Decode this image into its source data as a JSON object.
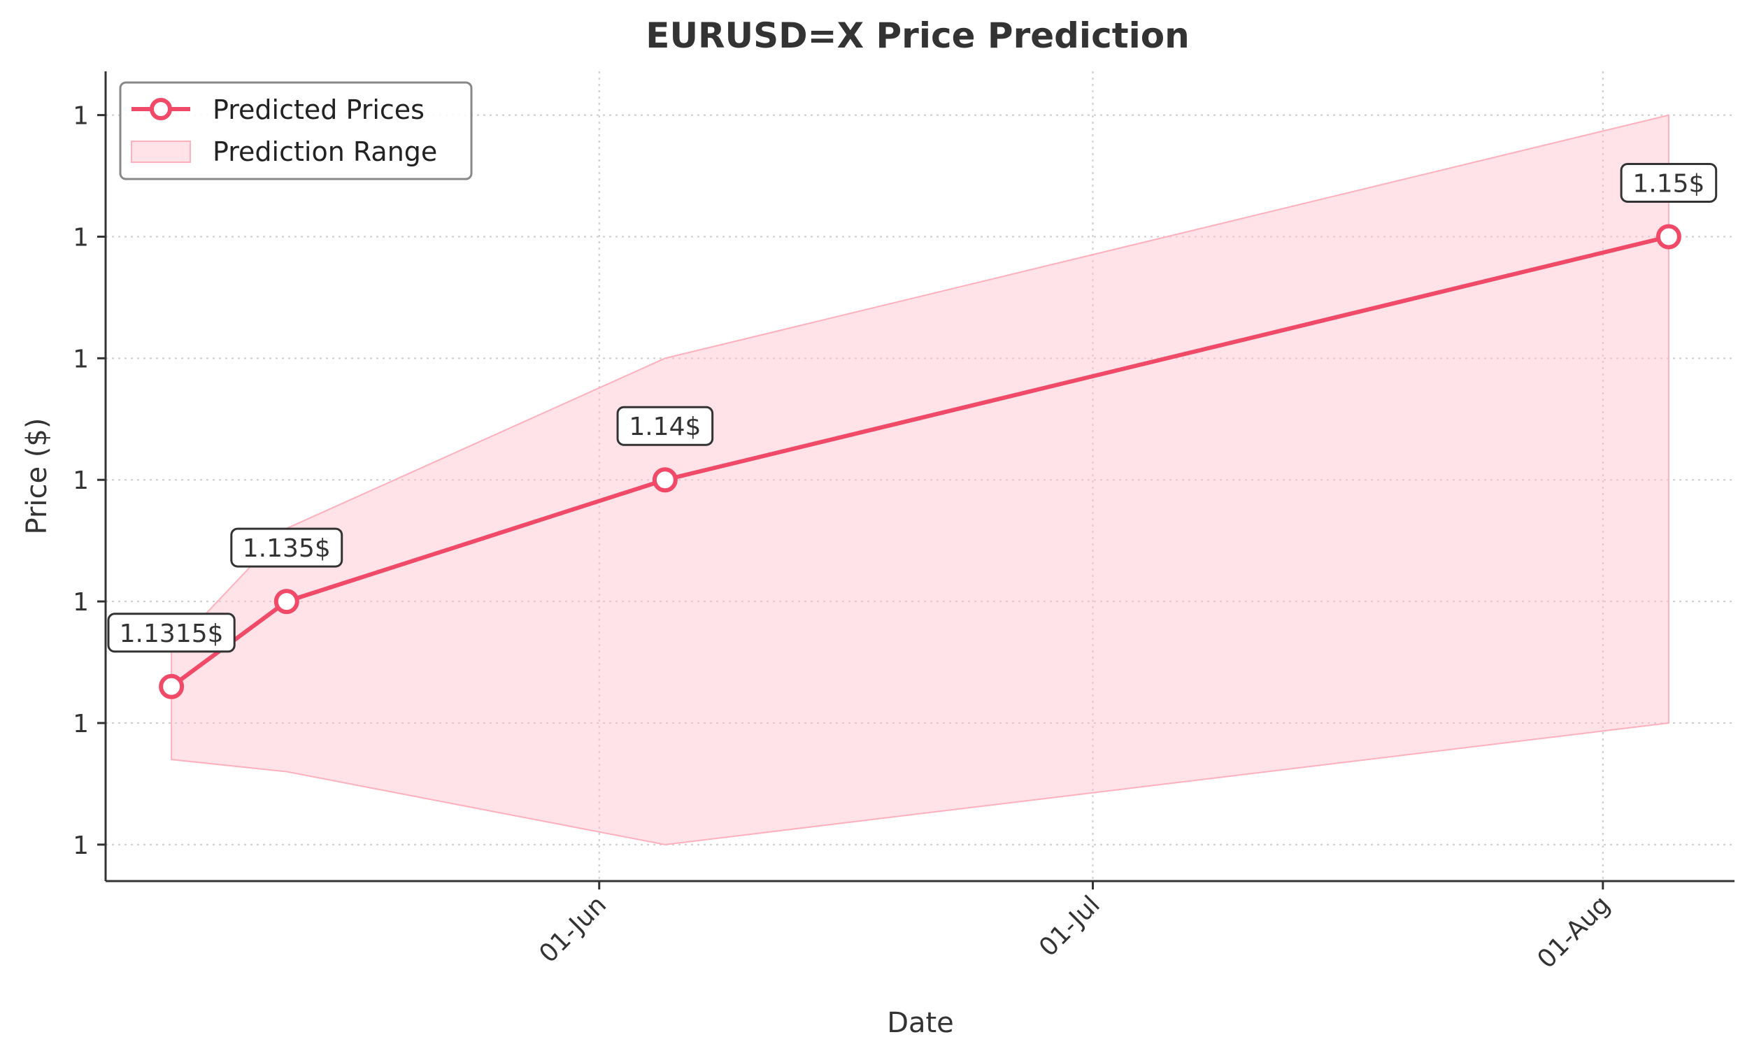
{
  "chart_data": {
    "type": "line",
    "title": "EURUSD=X Price Prediction",
    "xlabel": "Date",
    "ylabel": "Price ($)",
    "x_ticks": [
      {
        "date": "2025-06-01",
        "label": "01-Jun"
      },
      {
        "date": "2025-07-01",
        "label": "01-Jul"
      },
      {
        "date": "2025-08-01",
        "label": "01-Aug"
      }
    ],
    "y_ticks": [
      {
        "value": 1.125,
        "label": "1"
      },
      {
        "value": 1.13,
        "label": "1"
      },
      {
        "value": 1.135,
        "label": "1"
      },
      {
        "value": 1.14,
        "label": "1"
      },
      {
        "value": 1.145,
        "label": "1"
      },
      {
        "value": 1.15,
        "label": "1"
      },
      {
        "value": 1.155,
        "label": "1"
      }
    ],
    "xlim": [
      "2025-05-02",
      "2025-08-09"
    ],
    "ylim": [
      1.1235,
      1.1568
    ],
    "grid": true,
    "legend_position": "top-left",
    "series": [
      {
        "name": "Predicted Prices",
        "color": "#f04a68",
        "points": [
          {
            "x": "2025-05-06",
            "y": 1.1315,
            "label": "1.1315$"
          },
          {
            "x": "2025-05-13",
            "y": 1.135,
            "label": "1.135$"
          },
          {
            "x": "2025-06-05",
            "y": 1.14,
            "label": "1.14$"
          },
          {
            "x": "2025-08-05",
            "y": 1.15,
            "label": "1.15$"
          }
        ]
      }
    ],
    "range": {
      "name": "Prediction Range",
      "color": "#ffc0cb",
      "upper": [
        {
          "x": "2025-05-06",
          "y": 1.133
        },
        {
          "x": "2025-05-13",
          "y": 1.138
        },
        {
          "x": "2025-06-05",
          "y": 1.145
        },
        {
          "x": "2025-08-05",
          "y": 1.155
        }
      ],
      "lower": [
        {
          "x": "2025-05-06",
          "y": 1.1285
        },
        {
          "x": "2025-05-13",
          "y": 1.128
        },
        {
          "x": "2025-06-05",
          "y": 1.125
        },
        {
          "x": "2025-08-05",
          "y": 1.13
        }
      ]
    }
  }
}
